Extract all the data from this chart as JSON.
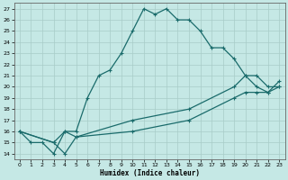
{
  "xlabel": "Humidex (Indice chaleur)",
  "bg_color": "#c5e8e5",
  "grid_color": "#a8ccc8",
  "line_color": "#1a6b6b",
  "ylim": [
    13.5,
    27.5
  ],
  "xlim": [
    -0.5,
    23.5
  ],
  "yticks": [
    14,
    15,
    16,
    17,
    18,
    19,
    20,
    21,
    22,
    23,
    24,
    25,
    26,
    27
  ],
  "xticks": [
    0,
    1,
    2,
    3,
    4,
    5,
    6,
    7,
    8,
    9,
    10,
    11,
    12,
    13,
    14,
    15,
    16,
    17,
    18,
    19,
    20,
    21,
    22,
    23
  ],
  "line1_x": [
    0,
    1,
    2,
    3,
    4,
    5,
    6,
    7,
    8,
    9,
    10,
    11,
    12,
    13,
    14,
    15,
    16,
    17,
    18,
    19,
    20,
    21,
    22,
    23
  ],
  "line1_y": [
    16,
    15,
    15,
    14,
    16,
    16,
    19,
    21,
    21.5,
    23,
    25,
    27,
    26.5,
    27,
    26,
    26,
    25,
    23.5,
    23.5,
    22.5,
    21,
    20,
    19.5,
    20
  ],
  "line2_x": [
    0,
    3,
    4,
    5,
    10,
    15,
    19,
    20,
    21,
    22,
    23
  ],
  "line2_y": [
    16,
    15,
    16,
    15.5,
    17,
    18,
    20,
    21,
    21,
    20,
    20
  ],
  "line3_x": [
    0,
    3,
    4,
    5,
    10,
    15,
    19,
    20,
    21,
    22,
    23
  ],
  "line3_y": [
    16,
    15,
    14,
    15.5,
    16,
    17,
    19,
    19.5,
    19.5,
    19.5,
    20.5
  ]
}
